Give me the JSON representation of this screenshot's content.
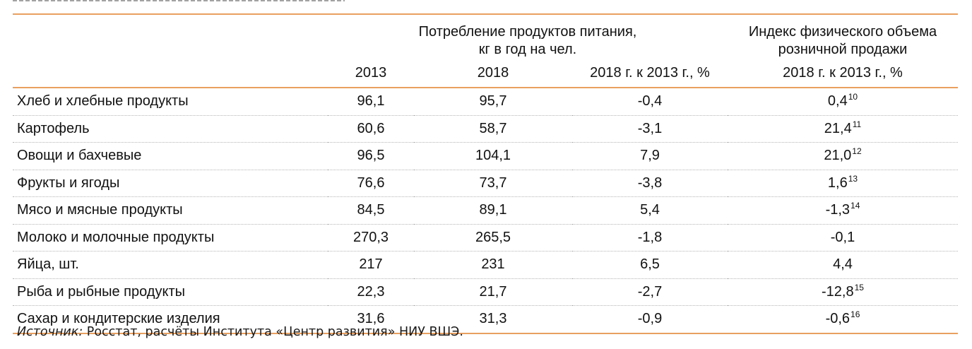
{
  "table": {
    "headers": {
      "consumption_group": [
        "Потребление продуктов питания,",
        "кг в год на чел."
      ],
      "index_group": [
        "Индекс физического объема",
        "розничной продажи"
      ],
      "col_2013": "2013",
      "col_2018": "2018",
      "col_change": "2018 г. к 2013 г., %",
      "col_index": "2018 г. к 2013 г., %"
    },
    "rows": [
      {
        "name": "Хлеб и хлебные продукты",
        "v2013": "96,1",
        "v2018": "95,7",
        "change": "-0,4",
        "index": "0,4",
        "note": "10"
      },
      {
        "name": "Картофель",
        "v2013": "60,6",
        "v2018": "58,7",
        "change": "-3,1",
        "index": "21,4",
        "note": "11"
      },
      {
        "name": "Овощи и бахчевые",
        "v2013": "96,5",
        "v2018": "104,1",
        "change": "7,9",
        "index": "21,0",
        "note": "12"
      },
      {
        "name": "Фрукты и ягоды",
        "v2013": "76,6",
        "v2018": "73,7",
        "change": "-3,8",
        "index": "1,6",
        "note": "13"
      },
      {
        "name": "Мясо и мясные продукты",
        "v2013": "84,5",
        "v2018": "89,1",
        "change": "5,4",
        "index": "-1,3",
        "note": "14"
      },
      {
        "name": "Молоко и молочные продукты",
        "v2013": "270,3",
        "v2018": "265,5",
        "change": "-1,8",
        "index": "-0,1",
        "note": ""
      },
      {
        "name": "Яйца, шт.",
        "v2013": "217",
        "v2018": "231",
        "change": "6,5",
        "index": "4,4",
        "note": ""
      },
      {
        "name": "Рыба и рыбные продукты",
        "v2013": "22,3",
        "v2018": "21,7",
        "change": "-2,7",
        "index": "-12,8",
        "note": "15"
      },
      {
        "name": "Сахар и кондитерские изделия",
        "v2013": "31,6",
        "v2018": "31,3",
        "change": "-0,9",
        "index": "-0,6",
        "note": "16"
      }
    ]
  },
  "source": {
    "label": "Источник:",
    "text": " Росстат, расчёты Института «Центр развития» НИУ ВШЭ."
  },
  "colors": {
    "rule": "#e8a060",
    "dotted": "#b5b5b5"
  }
}
